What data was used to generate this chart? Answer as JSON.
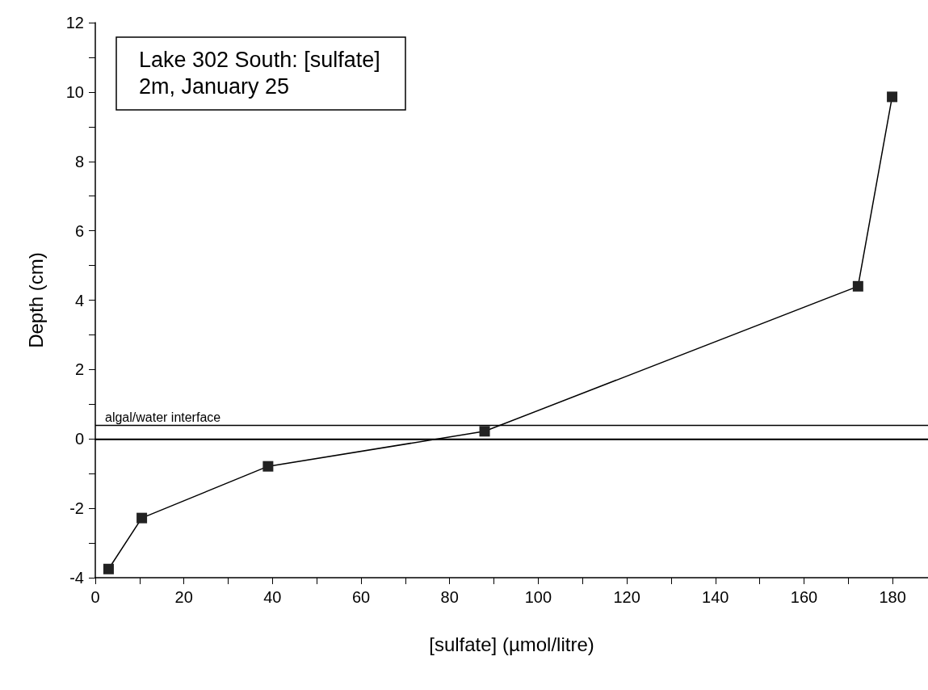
{
  "chart_data": {
    "type": "line",
    "title": "Lake 302 South: [sulfate]",
    "subtitle": "2m, January 25",
    "xlabel": "[sulfate] (µmol/litre)",
    "ylabel": "Depth (cm)",
    "x": [
      3.0,
      10.5,
      39.0,
      87.9,
      172.2,
      179.9
    ],
    "series": [
      {
        "color": "#222222",
        "values": [
          -3.75,
          -2.28,
          -0.79,
          0.22,
          4.4,
          9.86
        ]
      }
    ],
    "xlim": [
      0,
      188
    ],
    "xticks": [
      0,
      {
        "value": 10,
        "label": null
      },
      20,
      {
        "value": 30,
        "label": null
      },
      40,
      {
        "value": 50,
        "label": null
      },
      60,
      {
        "value": 70,
        "label": null
      },
      80,
      {
        "value": 90,
        "label": null
      },
      100,
      {
        "value": 110,
        "label": null
      },
      120,
      {
        "value": 130,
        "label": null
      },
      140,
      {
        "value": 150,
        "label": null
      },
      160,
      {
        "value": 170,
        "label": null
      },
      180
    ],
    "ylim": [
      -4,
      12
    ],
    "yticks": [
      -4,
      {
        "value": -3,
        "label": null
      },
      -2,
      {
        "value": -1,
        "label": null
      },
      0,
      {
        "value": 1,
        "label": null
      },
      2,
      {
        "value": 3,
        "label": null
      },
      4,
      {
        "value": 5,
        "label": null
      },
      6,
      {
        "value": 7,
        "label": null
      },
      8,
      {
        "value": 9,
        "label": null
      },
      10,
      {
        "value": 11,
        "label": null
      },
      12
    ],
    "ref_lines": [
      {
        "axis": "y",
        "value": 0.4,
        "label": "algal/water interface"
      },
      {
        "axis": "y",
        "value": 0
      }
    ],
    "marker": "square",
    "line_style": "solid"
  }
}
